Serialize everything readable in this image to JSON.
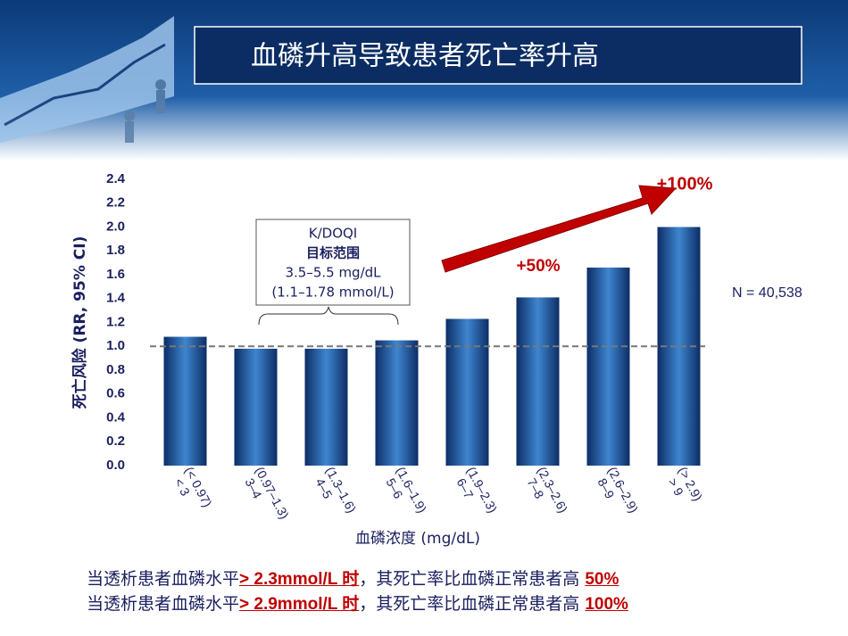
{
  "title": "血磷升高导致患者死亡率升高",
  "chart_data": {
    "type": "bar",
    "categories": [
      "< 3",
      "3–4",
      "4–5",
      "5–6",
      "6–7",
      "7–8",
      "8–9",
      "> 9"
    ],
    "categories_mmol": [
      "(< 0.97)",
      "(0.97–1.3)",
      "(1.3–1.6)",
      "(1.6–1.9)",
      "(1.9–2.3)",
      "(2.3–2.6)",
      "(2.6–2.9)",
      "(> 2.9)"
    ],
    "values": [
      1.08,
      0.98,
      0.98,
      1.05,
      1.23,
      1.41,
      1.66,
      2.0
    ],
    "color": "#1f5aa6",
    "ylim": [
      0,
      2.4
    ],
    "yticks": [
      {
        "value": 0,
        "label": "0.0"
      },
      0.2,
      0.4,
      0.6,
      0.8,
      {
        "value": 1,
        "label": "1.0"
      },
      1.2,
      1.4,
      1.6,
      1.8,
      {
        "value": 2,
        "label": "2.0"
      },
      2.2,
      2.4
    ],
    "reference_line": 1,
    "ylabel": "死亡风险 (RR, 95% CI)",
    "xlabel": "血磷浓度 (mg/dL)",
    "target_box": [
      "K/DOQI",
      "目标范围",
      "3.5–5.5 mg/dL",
      "(1.1–1.78 mmol/L)"
    ],
    "annotations": [
      "+50%",
      "+100%"
    ],
    "n_label": "N = 40,538"
  },
  "footer": [
    [
      "当透析患者血磷水平",
      "> 2.3mmol/L 时",
      "，其死亡率比血磷正常患者高 ",
      "50%"
    ],
    [
      "当透析患者血磷水平",
      "> 2.9mmol/L 时",
      "，其死亡率比血磷正常患者高 ",
      "100%"
    ]
  ]
}
